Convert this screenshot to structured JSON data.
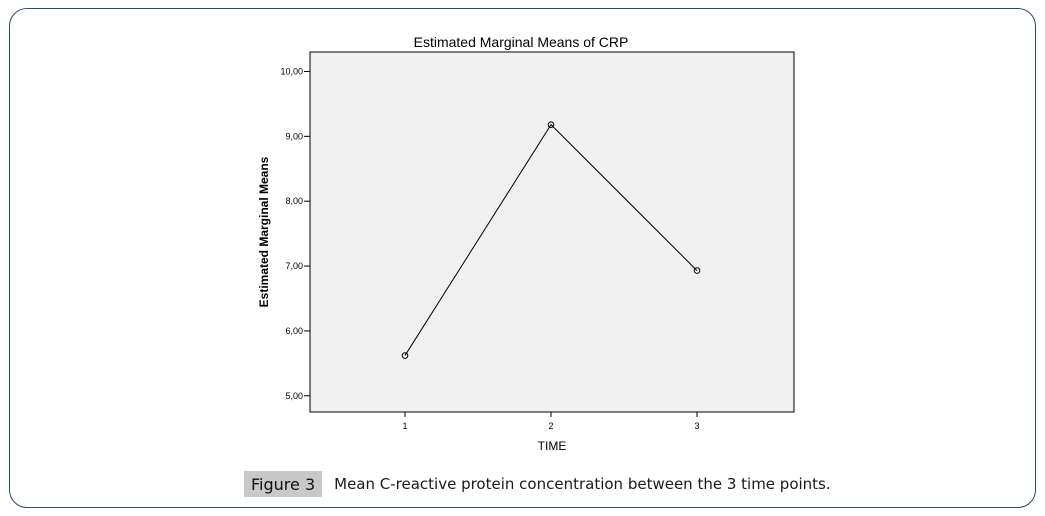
{
  "chart_data": {
    "type": "line",
    "title": "Estimated Marginal Means of CRP",
    "xlabel": "TIME",
    "ylabel": "Estimated Marginal Means",
    "categories": [
      "1",
      "2",
      "3"
    ],
    "series": [
      {
        "values": [
          5.62,
          9.18,
          6.93
        ]
      }
    ],
    "ylim": [
      4.75,
      10.3
    ],
    "yticks": [
      "5,00",
      "6,00",
      "7,00",
      "8,00",
      "9,00",
      "10,00"
    ],
    "ytick_values": [
      5,
      6,
      7,
      8,
      9,
      10
    ],
    "grid": false,
    "plot_background": "#f0f0f0",
    "line_color": "#000000"
  },
  "caption": {
    "label": "Figure 3",
    "text": "Mean C-reactive protein concentration between the 3 time points."
  }
}
